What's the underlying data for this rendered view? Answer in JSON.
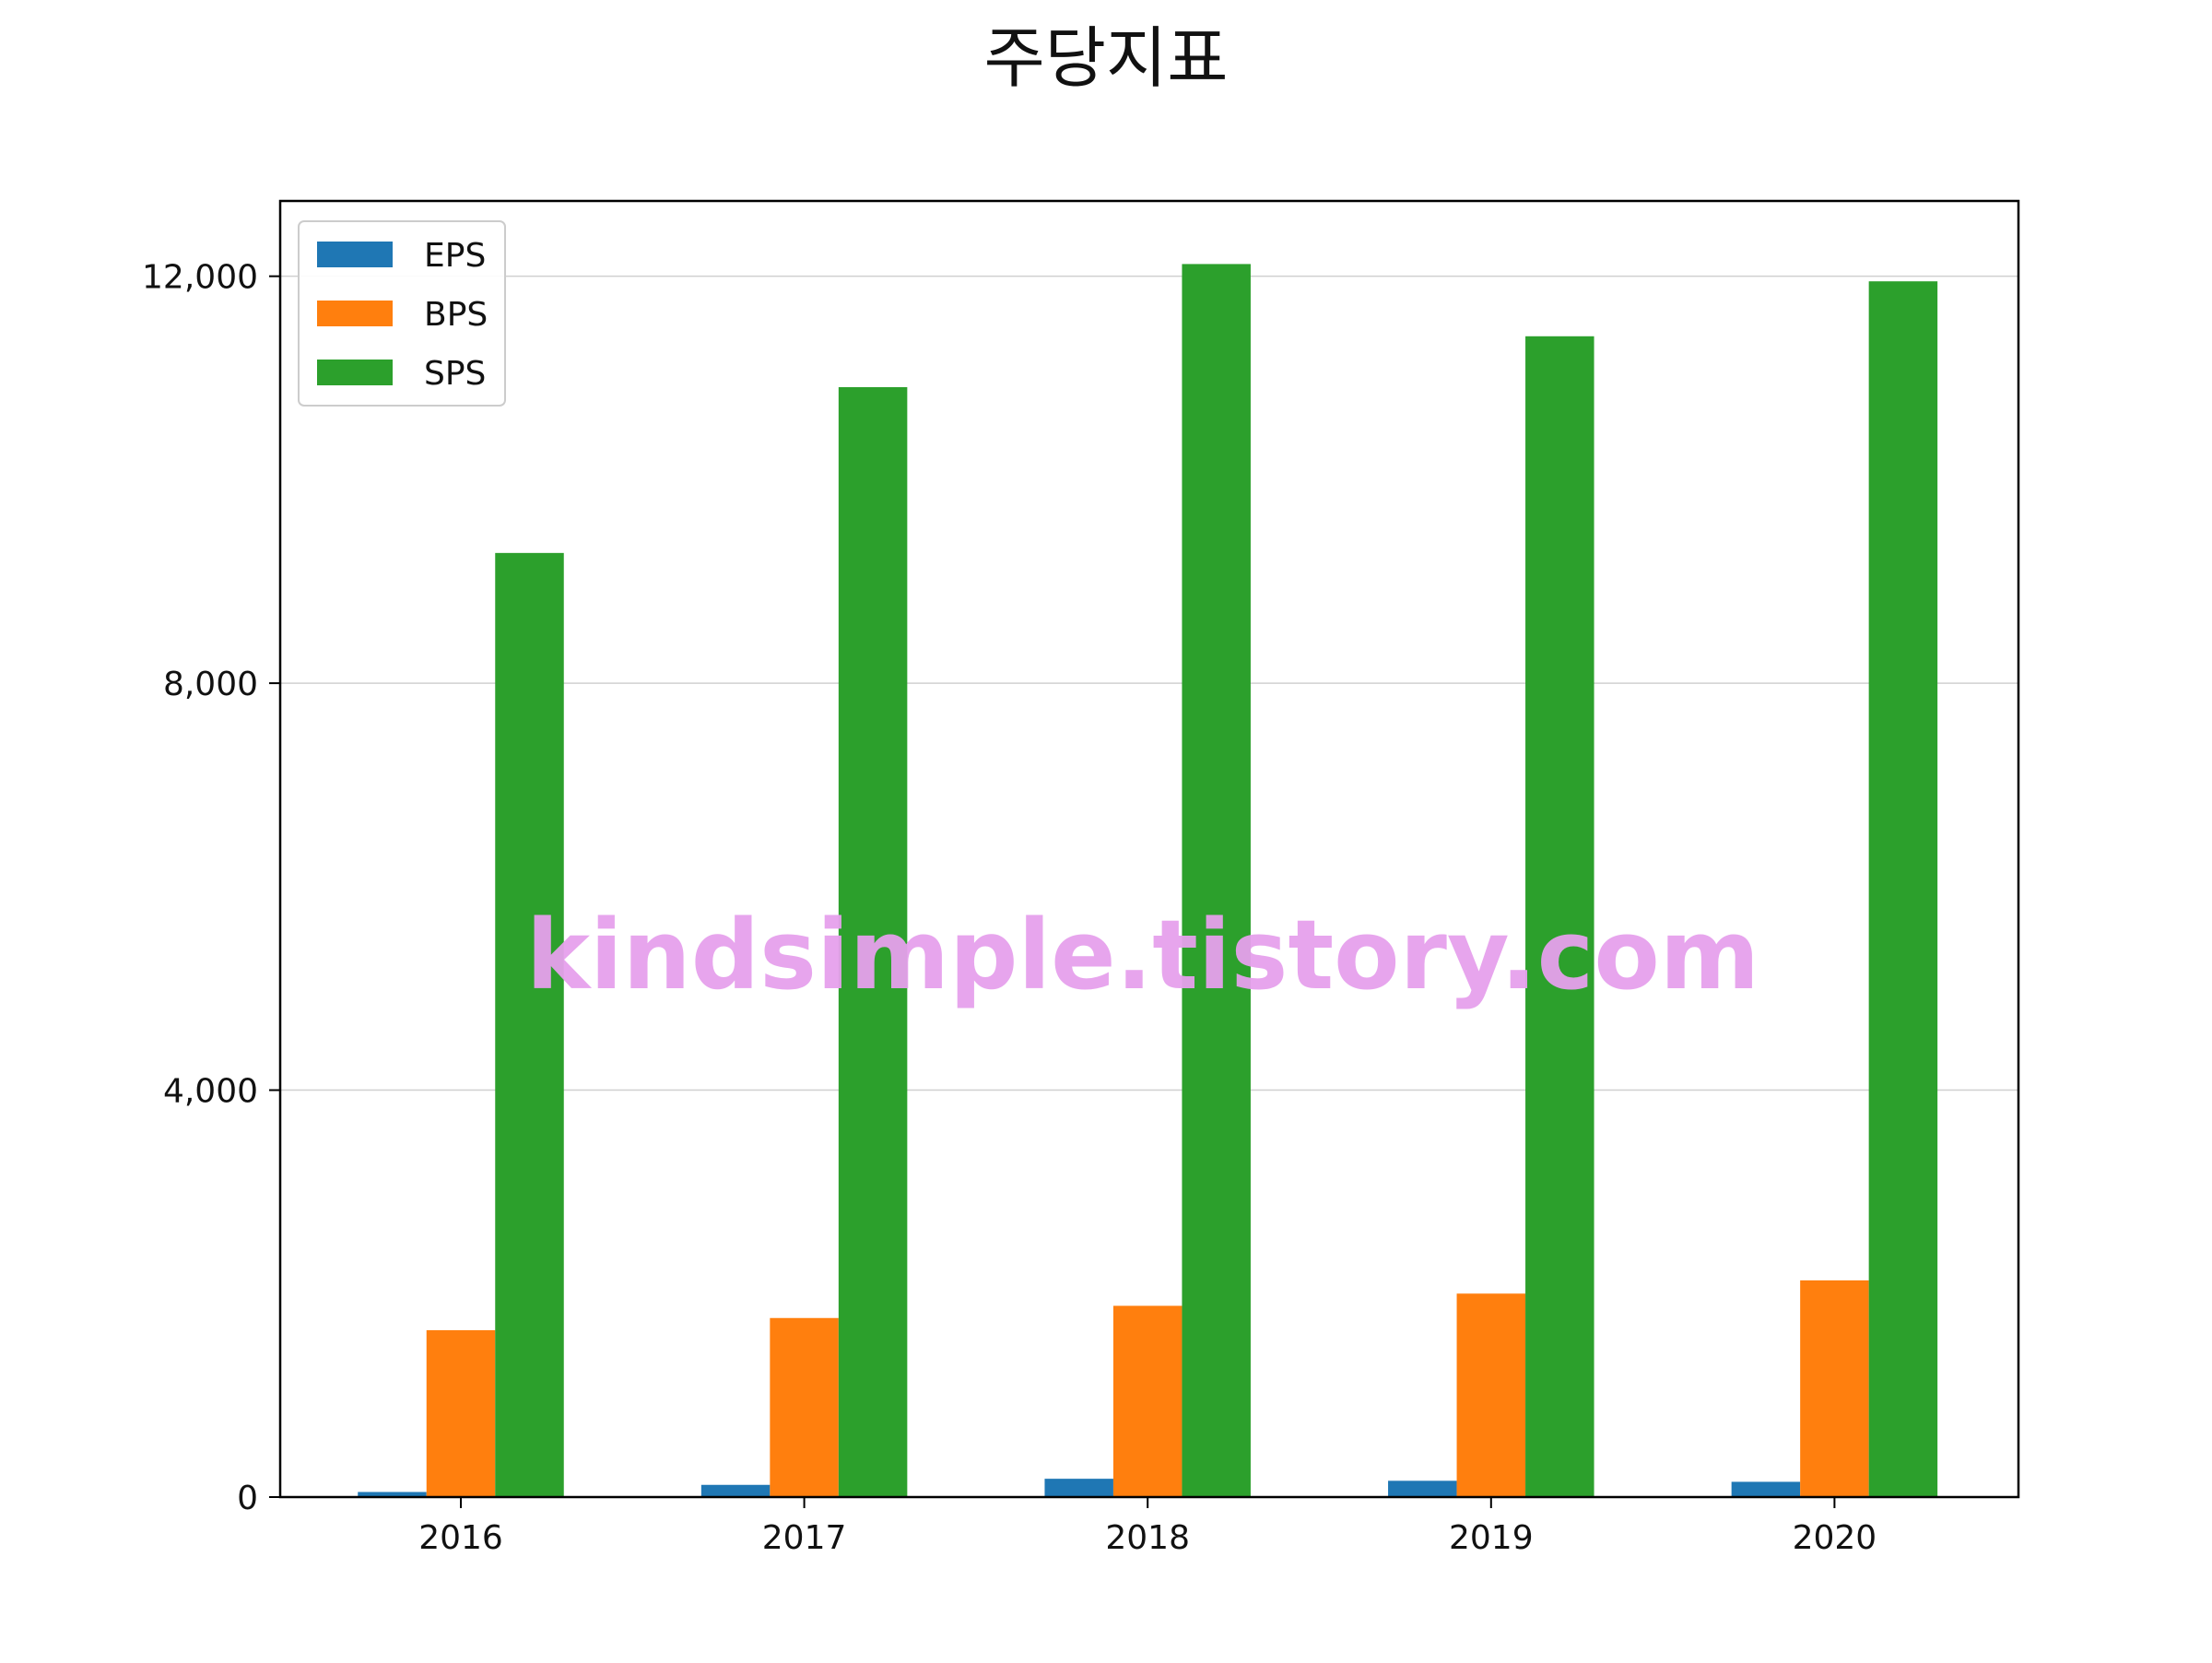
{
  "chart_data": {
    "type": "bar",
    "title": "주당지표",
    "xlabel": "",
    "ylabel": "",
    "categories": [
      "2016",
      "2017",
      "2018",
      "2019",
      "2020"
    ],
    "series": [
      {
        "name": "EPS",
        "values": [
          50,
          120,
          180,
          160,
          150
        ]
      },
      {
        "name": "BPS",
        "values": [
          1640,
          1760,
          1880,
          2000,
          2130
        ]
      },
      {
        "name": "SPS",
        "values": [
          9280,
          10910,
          12120,
          11410,
          11950
        ]
      }
    ],
    "ylim": [
      0,
      12740
    ],
    "yticks": [
      0,
      4000,
      8000,
      12000
    ],
    "ytick_labels": [
      "0",
      "4,000",
      "8,000",
      "12,000"
    ],
    "grid": "horizontal",
    "legend": "upper-left",
    "colors": {
      "EPS": "#1f77b4",
      "BPS": "#ff7f0e",
      "SPS": "#2ca02c"
    },
    "watermark": "kindsimple.tistory.com",
    "watermark_color": "#e6a0ec"
  }
}
